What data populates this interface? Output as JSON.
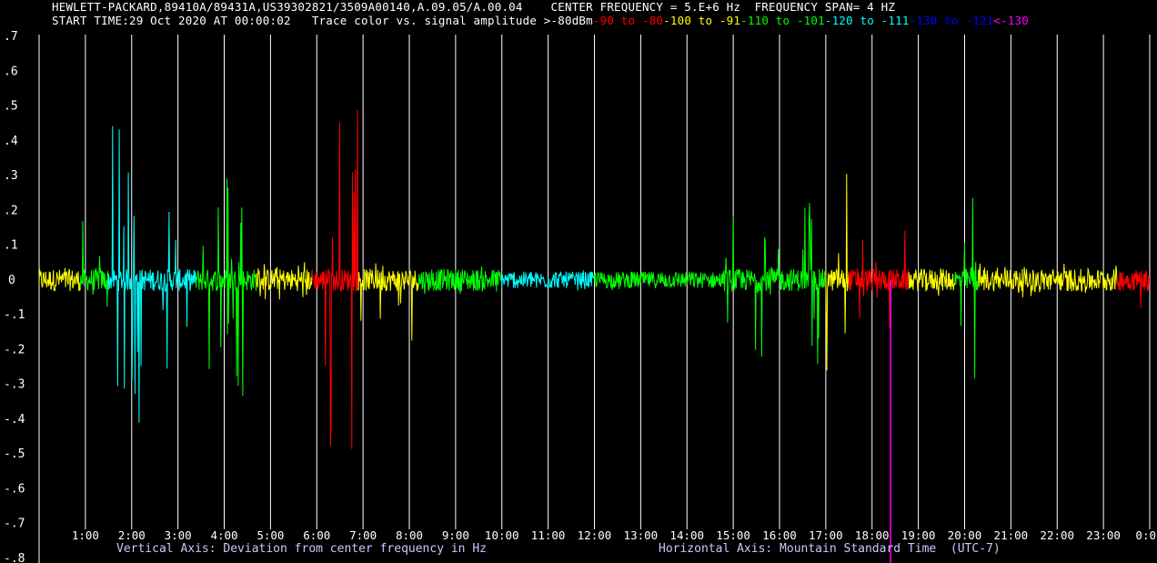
{
  "header": {
    "line1": "HEWLETT-PACKARD,89410A/89431A,US39302821/3509A00140,A.09.05/A.00.04    CENTER FREQUENCY = 5.E+6 Hz  FREQUENCY SPAN= 4 HZ",
    "start_time": "START TIME:29 Oct 2020 AT 00:00:02",
    "legend_prefix": "Trace color vs. signal amplitude >-80dBm",
    "legend_segments": [
      {
        "text": "-90 to -80",
        "color": "#ff0000"
      },
      {
        "text": "-100 to -91",
        "color": "#ffff00"
      },
      {
        "text": "-110 to -101",
        "color": "#00ff00"
      },
      {
        "text": "-120 to -111",
        "color": "#00ffff"
      },
      {
        "text": "-130 to -121",
        "color": "#0000ff"
      },
      {
        "text": "<-130",
        "color": "#ff00ff"
      }
    ]
  },
  "chart_data": {
    "type": "line",
    "xlabel": "Horizontal Axis: Mountain Standard Time  (UTC-7)",
    "ylabel": "Vertical Axis: Deviation from center frequency in Hz",
    "xlim": [
      0,
      24
    ],
    "ylim": [
      -0.8,
      0.7
    ],
    "x_ticks": [
      "1:00",
      "2:00",
      "3:00",
      "4:00",
      "5:00",
      "6:00",
      "7:00",
      "8:00",
      "9:00",
      "10:00",
      "11:00",
      "12:00",
      "13:00",
      "14:00",
      "15:00",
      "16:00",
      "17:00",
      "18:00",
      "19:00",
      "20:00",
      "21:00",
      "22:00",
      "23:00",
      "0:0"
    ],
    "y_ticks": [
      ".7",
      ".6",
      ".5",
      ".4",
      ".3",
      ".2",
      ".1",
      "0",
      "-.1",
      "-.2",
      "-.3",
      "-.4",
      "-.5",
      "-.6",
      "-.7",
      "-.8"
    ],
    "grid": "vertical lines at each hour",
    "colors": {
      "red": "#ff0000",
      "yellow": "#ffff00",
      "green": "#00ff00",
      "cyan": "#00ffff",
      "blue": "#0000ff",
      "magenta": "#ff00ff",
      "grid": "#ffffff",
      "axis_title": "#c8c8ff"
    },
    "series": [
      {
        "segments": [
          {
            "x0": 0.0,
            "x1": 0.9,
            "amp": 0.04,
            "color": "yellow"
          },
          {
            "x0": 0.9,
            "x1": 1.5,
            "amp": 0.22,
            "color": "green"
          },
          {
            "x0": 1.5,
            "x1": 2.6,
            "amp": 0.45,
            "color": "cyan"
          },
          {
            "x0": 2.6,
            "x1": 3.4,
            "amp": 0.35,
            "color": "cyan"
          },
          {
            "x0": 3.4,
            "x1": 4.7,
            "amp": 0.35,
            "color": "green"
          },
          {
            "x0": 4.7,
            "x1": 5.9,
            "amp": 0.06,
            "color": "yellow"
          },
          {
            "x0": 5.9,
            "x1": 6.9,
            "amp": 0.55,
            "color": "red"
          },
          {
            "x0": 6.9,
            "x1": 8.2,
            "amp": 0.18,
            "color": "yellow"
          },
          {
            "x0": 8.2,
            "x1": 10.0,
            "amp": 0.04,
            "color": "green"
          },
          {
            "x0": 10.0,
            "x1": 12.0,
            "amp": 0.03,
            "color": "cyan"
          },
          {
            "x0": 12.0,
            "x1": 14.8,
            "amp": 0.03,
            "color": "green"
          },
          {
            "x0": 14.8,
            "x1": 17.0,
            "amp": 0.25,
            "color": "green"
          },
          {
            "x0": 17.0,
            "x1": 17.5,
            "amp": 0.35,
            "color": "yellow"
          },
          {
            "x0": 17.5,
            "x1": 18.8,
            "amp": 0.15,
            "color": "red"
          },
          {
            "x0": 18.8,
            "x1": 19.8,
            "amp": 0.05,
            "color": "yellow"
          },
          {
            "x0": 19.8,
            "x1": 20.3,
            "amp": 0.35,
            "color": "green"
          },
          {
            "x0": 20.3,
            "x1": 23.3,
            "amp": 0.05,
            "color": "yellow"
          },
          {
            "x0": 23.3,
            "x1": 24.0,
            "amp": 0.08,
            "color": "red"
          }
        ]
      }
    ]
  }
}
